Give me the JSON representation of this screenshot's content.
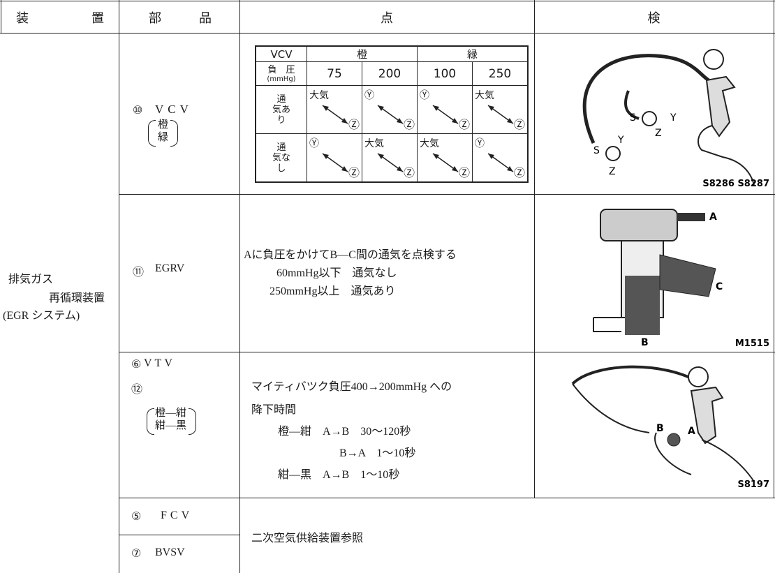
{
  "header": {
    "columns": [
      "装　　　　　置",
      "部　　　品",
      "点",
      "検"
    ]
  },
  "system": {
    "lines": [
      "排気ガス",
      "再循環装置",
      "(EGR システム)"
    ]
  },
  "rows": [
    {
      "number": "⑩",
      "part": "VCV",
      "note": [
        "橙",
        "緑"
      ],
      "vcv_table": {
        "header": [
          "VCV",
          "橙",
          "緑"
        ],
        "pressure_label": [
          "負　圧",
          "(mmHg)"
        ],
        "pressures": [
          "75",
          "200",
          "100",
          "250"
        ],
        "rows": [
          {
            "label": [
              "通",
              "気あ",
              "り"
            ],
            "cells": [
              [
                "大気",
                "Ⓩ"
              ],
              [
                "Ⓨ",
                "Ⓩ"
              ],
              [
                "Ⓨ",
                "Ⓩ"
              ],
              [
                "大気",
                "Ⓩ"
              ]
            ]
          },
          {
            "label": [
              "通",
              "気な",
              "し"
            ],
            "cells": [
              [
                "Ⓨ",
                "Ⓩ"
              ],
              [
                "大気",
                "Ⓩ"
              ],
              [
                "大気",
                "Ⓩ"
              ],
              [
                "Ⓨ",
                "Ⓩ"
              ]
            ]
          }
        ]
      },
      "figure": {
        "caption": "S8286 S8287",
        "labels": [
          "S",
          "Y",
          "Z",
          "S",
          "Y",
          "Z"
        ]
      }
    },
    {
      "number": "⑪",
      "part": "EGRV",
      "description": [
        "Aに負圧をかけてB—C間の通気を点検する",
        "60mmHg以下　通気なし",
        "250mmHg以上　通気あり"
      ],
      "figure": {
        "caption": "M1515",
        "labels": [
          "A",
          "B",
          "C"
        ]
      }
    },
    {
      "number": "⑥",
      "part": "VTV",
      "number2": "⑫",
      "note": [
        "橙—紺",
        "紺—黒"
      ],
      "description": [
        "マイティバツク負圧400→200mmHg への",
        "降下時間",
        "橙—紺　A→B　30～120秒",
        "B→A　1～10秒",
        "紺—黒　A→B　1～10秒"
      ],
      "figure": {
        "caption": "S8197",
        "labels": [
          "B",
          "A"
        ]
      }
    },
    {
      "number": "⑤",
      "part": "FCV"
    },
    {
      "number": "⑦",
      "part": "BVSV",
      "description": [
        "二次空気供給装置参照"
      ]
    }
  ]
}
